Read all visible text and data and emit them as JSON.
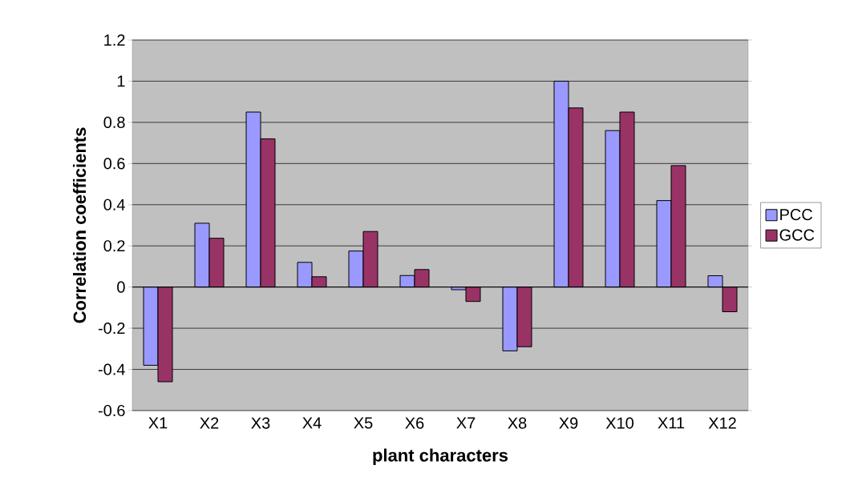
{
  "chart_data": {
    "type": "bar",
    "xlabel": "plant characters",
    "ylabel": "Correlation coefficients",
    "categories": [
      "X1",
      "X2",
      "X3",
      "X4",
      "X5",
      "X6",
      "X7",
      "X8",
      "X9",
      "X10",
      "X11",
      "X12"
    ],
    "series": [
      {
        "name": "PCC",
        "color": "#9999ff",
        "values": [
          -0.38,
          0.31,
          0.85,
          0.12,
          0.175,
          0.056,
          -0.013,
          -0.31,
          1.0,
          0.76,
          0.42,
          0.055
        ]
      },
      {
        "name": "GCC",
        "color": "#993366",
        "values": [
          -0.46,
          0.237,
          0.72,
          0.05,
          0.27,
          0.085,
          -0.07,
          -0.29,
          0.87,
          0.85,
          0.59,
          -0.12
        ]
      }
    ],
    "ylim": [
      -0.6,
      1.2
    ],
    "yticks": [
      -0.6,
      -0.4,
      -0.2,
      0,
      0.2,
      0.4,
      0.6,
      0.8,
      1,
      1.2
    ],
    "grid": "y",
    "legend": "right"
  }
}
